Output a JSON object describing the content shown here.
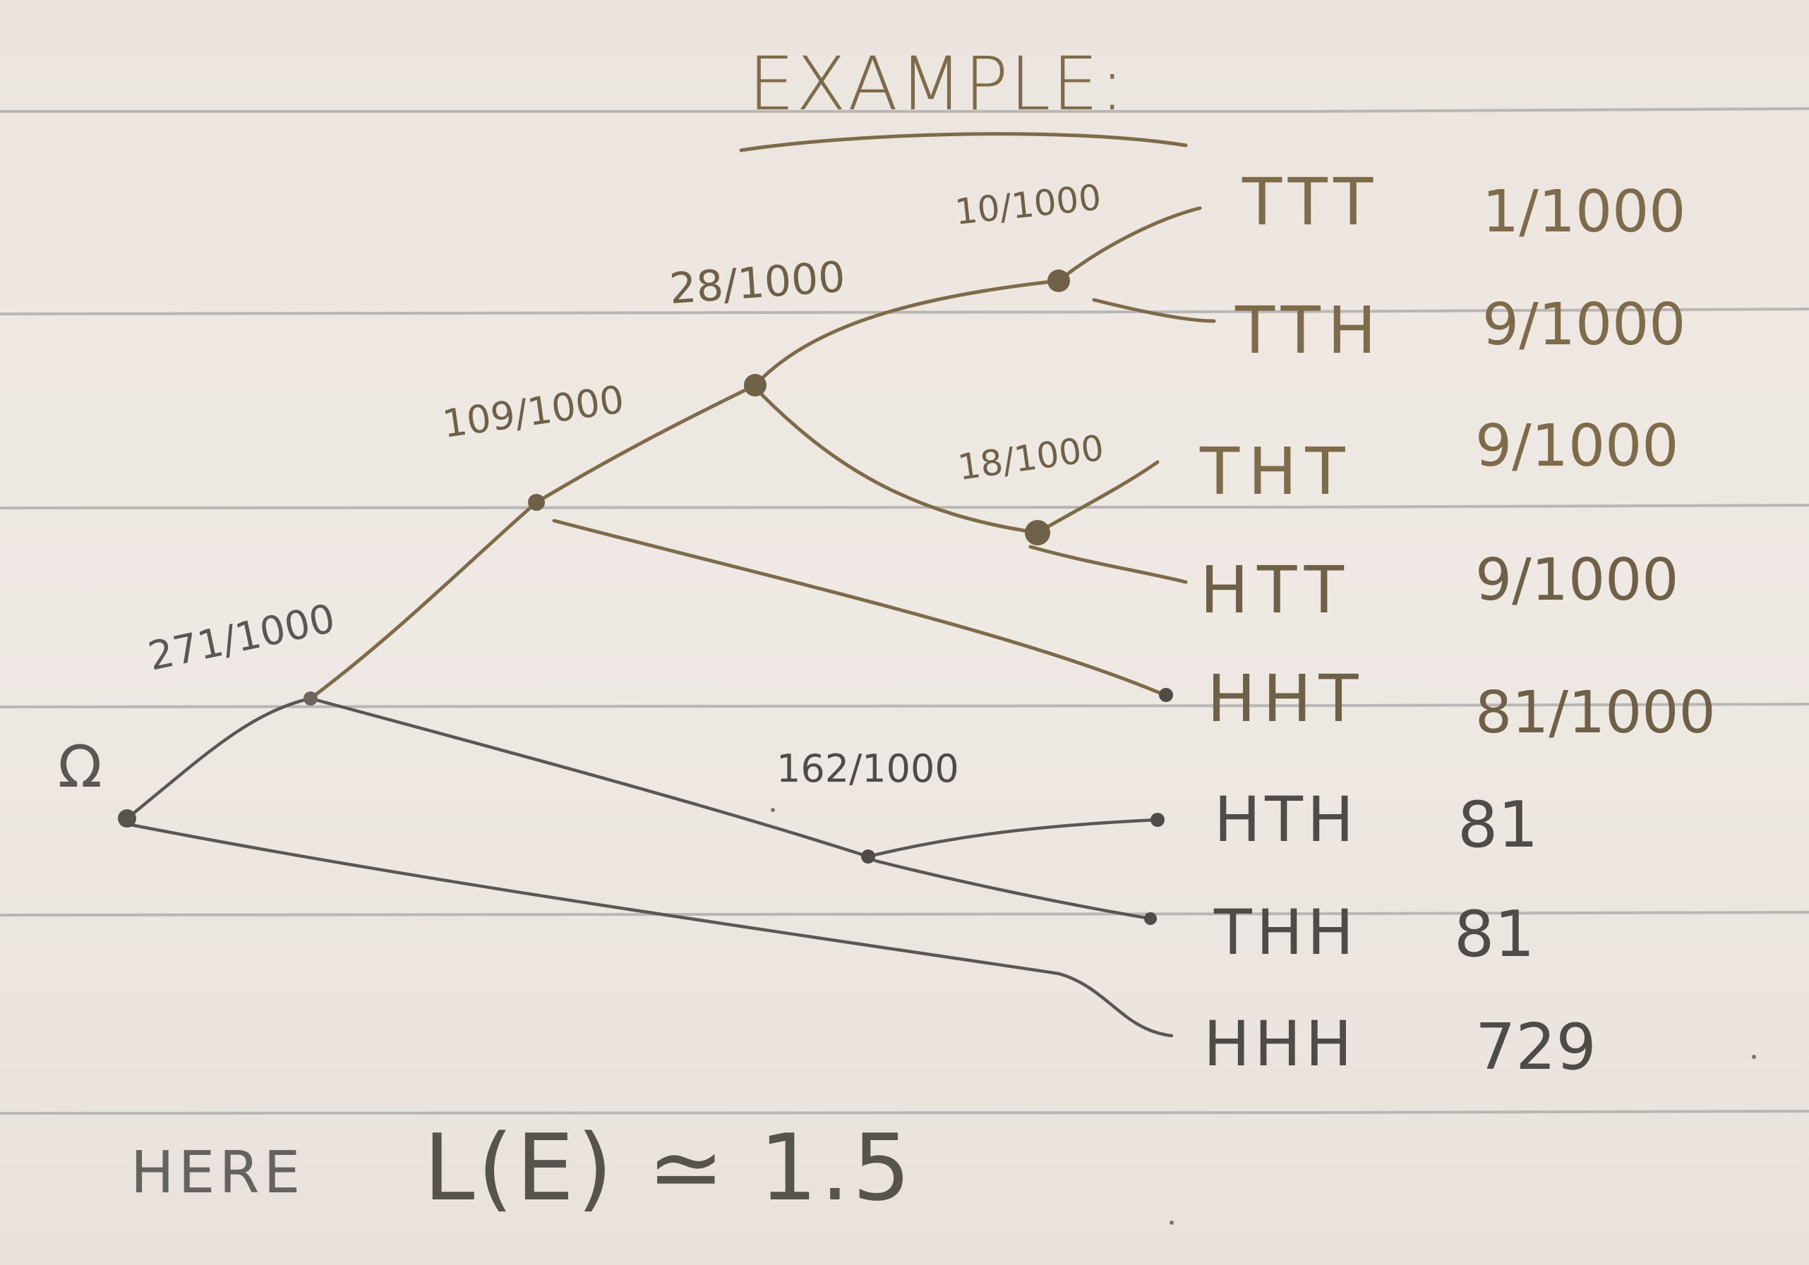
{
  "title": "EXAMPLE:",
  "root_label": "Ω",
  "colors": {
    "paper": "#eee7e2",
    "ruled_line": "#b9b6b6",
    "pencil": "#5b5853",
    "gold_ink": "#7d6b4a"
  },
  "branch_labels": [
    "271/1000",
    "109/1000",
    "28/1000",
    "10/1000",
    "18/1000",
    "162/1000"
  ],
  "outcomes": [
    {
      "sequence": "TTT",
      "probability": "1/1000"
    },
    {
      "sequence": "TTH",
      "probability": "9/1000"
    },
    {
      "sequence": "THT",
      "probability": "9/1000"
    },
    {
      "sequence": "HTT",
      "probability": "9/1000"
    },
    {
      "sequence": "HHT",
      "probability": "81/1000"
    },
    {
      "sequence": "HTH",
      "probability": "81"
    },
    {
      "sequence": "THH",
      "probability": "81"
    },
    {
      "sequence": "HHH",
      "probability": "729"
    }
  ],
  "footer": {
    "prefix": "HERE",
    "expression": "L(E) ≃ 1.5"
  }
}
